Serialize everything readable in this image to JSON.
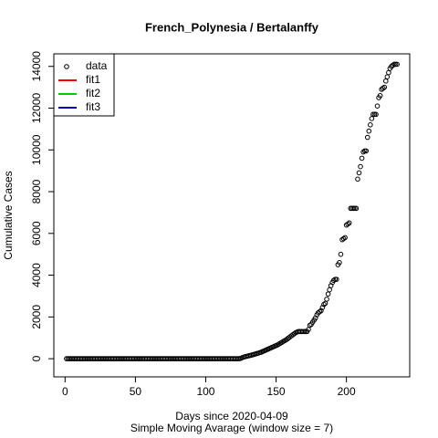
{
  "chart_data": {
    "type": "scatter",
    "title": "French_Polynesia / Bertalanffy",
    "xlabel": "Days since 2020-04-09",
    "subtitle": "Simple Moving Avarage (window size = 7)",
    "ylabel": "Cumulative Cases",
    "xlim": [
      -8,
      245
    ],
    "ylim": [
      -870,
      14600
    ],
    "xticks": [
      0,
      50,
      100,
      150,
      200
    ],
    "yticks": [
      0,
      2000,
      4000,
      6000,
      8000,
      10000,
      12000,
      14000
    ],
    "legend_position": "top-left",
    "legend": [
      {
        "label": "data",
        "color": "#000000"
      },
      {
        "label": "fit1",
        "color": "#ff0000"
      },
      {
        "label": "fit2",
        "color": "#00cd00"
      },
      {
        "label": "fit3",
        "color": "#0000cd"
      }
    ],
    "x": [
      1,
      2,
      3,
      4,
      5,
      6,
      7,
      8,
      9,
      10,
      11,
      12,
      13,
      14,
      15,
      16,
      17,
      18,
      19,
      20,
      21,
      22,
      23,
      24,
      25,
      26,
      27,
      28,
      29,
      30,
      31,
      32,
      33,
      34,
      35,
      36,
      37,
      38,
      39,
      40,
      41,
      42,
      43,
      44,
      45,
      46,
      47,
      48,
      49,
      50,
      51,
      52,
      53,
      54,
      55,
      56,
      57,
      58,
      59,
      60,
      61,
      62,
      63,
      64,
      65,
      66,
      67,
      68,
      69,
      70,
      71,
      72,
      73,
      74,
      75,
      76,
      77,
      78,
      79,
      80,
      81,
      82,
      83,
      84,
      85,
      86,
      87,
      88,
      89,
      90,
      91,
      92,
      93,
      94,
      95,
      96,
      97,
      98,
      99,
      100,
      101,
      102,
      103,
      104,
      105,
      106,
      107,
      108,
      109,
      110,
      111,
      112,
      113,
      114,
      115,
      116,
      117,
      118,
      119,
      120,
      121,
      122,
      123,
      124,
      125,
      126,
      127,
      128,
      129,
      130,
      131,
      132,
      133,
      134,
      135,
      136,
      137,
      138,
      139,
      140,
      141,
      142,
      143,
      144,
      145,
      146,
      147,
      148,
      149,
      150,
      151,
      152,
      153,
      154,
      155,
      156,
      157,
      158,
      159,
      160,
      161,
      162,
      163,
      164,
      165,
      166,
      167,
      168,
      169,
      170,
      171,
      172,
      173,
      174,
      175,
      176,
      177,
      178,
      179,
      180,
      181,
      182,
      183,
      184,
      185,
      186,
      187,
      188,
      189,
      190,
      191,
      192,
      193,
      194,
      195,
      196,
      197,
      198,
      199,
      200,
      201,
      202,
      203,
      204,
      205,
      206,
      207,
      208,
      209,
      210,
      211,
      212,
      213,
      214,
      215,
      216,
      217,
      218,
      219,
      220,
      221,
      222,
      223,
      224,
      225,
      226,
      227,
      228,
      229,
      230,
      231,
      232,
      233,
      234,
      235,
      236
    ],
    "values": [
      0,
      0,
      0,
      0,
      0,
      0,
      0,
      0,
      0,
      0,
      0,
      0,
      0,
      0,
      0,
      0,
      0,
      0,
      0,
      0,
      0,
      0,
      0,
      0,
      0,
      0,
      0,
      0,
      0,
      0,
      0,
      0,
      0,
      0,
      0,
      0,
      0,
      0,
      0,
      0,
      0,
      0,
      0,
      0,
      0,
      0,
      0,
      0,
      0,
      0,
      0,
      0,
      0,
      0,
      0,
      0,
      0,
      0,
      0,
      0,
      0,
      0,
      0,
      0,
      0,
      0,
      0,
      0,
      0,
      0,
      0,
      0,
      0,
      0,
      0,
      0,
      0,
      0,
      0,
      0,
      0,
      0,
      0,
      0,
      0,
      0,
      0,
      0,
      0,
      0,
      0,
      0,
      0,
      0,
      0,
      0,
      0,
      0,
      0,
      0,
      0,
      0,
      0,
      0,
      0,
      0,
      0,
      0,
      0,
      0,
      0,
      0,
      0,
      0,
      0,
      0,
      0,
      0,
      0,
      0,
      0,
      0,
      0,
      0,
      20,
      50,
      80,
      100,
      110,
      130,
      150,
      160,
      180,
      200,
      220,
      240,
      260,
      280,
      300,
      330,
      360,
      390,
      420,
      450,
      480,
      510,
      540,
      570,
      600,
      630,
      660,
      700,
      740,
      780,
      820,
      860,
      900,
      950,
      1000,
      1050,
      1100,
      1150,
      1200,
      1250,
      1280,
      1300,
      1300,
      1300,
      1300,
      1300,
      1300,
      1300,
      1400,
      1600,
      1650,
      1750,
      1850,
      1950,
      2100,
      2200,
      2250,
      2300,
      2450,
      2600,
      2650,
      2850,
      3100,
      3300,
      3500,
      3650,
      3750,
      3800,
      3800,
      4500,
      4600,
      5000,
      5700,
      5750,
      5800,
      6400,
      6450,
      6500,
      7200,
      7200,
      7200,
      7200,
      7200,
      8600,
      8900,
      9200,
      9600,
      9900,
      9950,
      9950,
      10600,
      10900,
      11200,
      11500,
      11700,
      11700,
      11700,
      12100,
      12500,
      12600,
      12900,
      12950,
      13000,
      13300,
      13500,
      13700,
      13900,
      14000,
      14050,
      14100,
      14100,
      14100
    ]
  }
}
